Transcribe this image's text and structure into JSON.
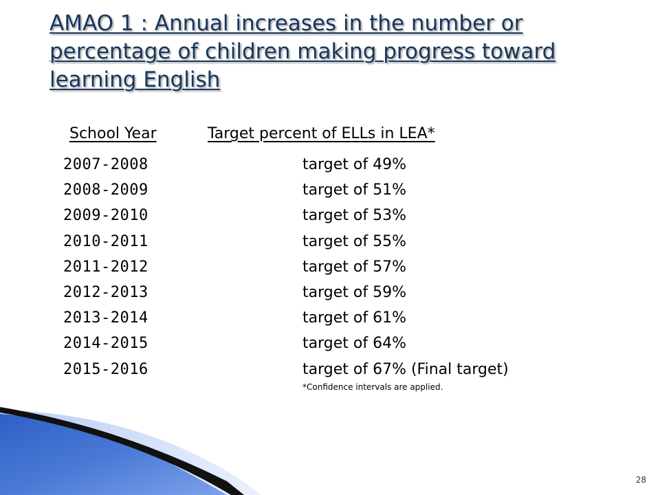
{
  "slide": {
    "title": "AMAO 1 : Annual increases in the number or percentage of children making progress toward learning English",
    "column_headers": {
      "year": "School Year",
      "target": "Target percent of ELLs in LEA*"
    },
    "rows": [
      {
        "year": "2007-2008",
        "target": "target of 49%"
      },
      {
        "year": "2008-2009",
        "target": "target of 51%"
      },
      {
        "year": "2009-2010",
        "target": "target of 53%"
      },
      {
        "year": "2010-2011",
        "target": "target of 55%"
      },
      {
        "year": "2011-2012",
        "target": "target of 57%"
      },
      {
        "year": "2012-2013",
        "target": "target of 59%"
      },
      {
        "year": "2013-2014",
        "target": "target of 61%"
      },
      {
        "year": "2014-2015",
        "target": "target of 64%"
      },
      {
        "year": "2015-2016",
        "target": "target of 67%  (Final target)"
      }
    ],
    "footnote": "*Confidence intervals are applied.",
    "page_number": "28"
  },
  "colors": {
    "title": "#17365d",
    "swoosh_blue": "#3a67c8",
    "swoosh_light": "#8fb0ee",
    "swoosh_dark": "#111111"
  }
}
